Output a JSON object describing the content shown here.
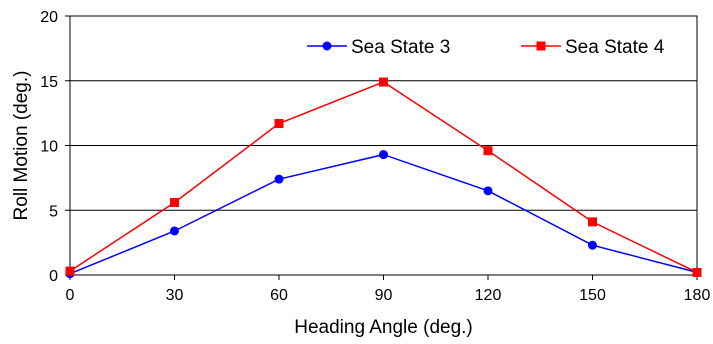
{
  "chart_data": {
    "type": "line",
    "xlabel": "Heading Angle (deg.)",
    "ylabel": "Roll Motion (deg.)",
    "xlim": [
      0,
      180
    ],
    "ylim": [
      0,
      20
    ],
    "x_ticks": [
      0,
      30,
      60,
      90,
      120,
      150,
      180
    ],
    "y_ticks": [
      0,
      5,
      10,
      15,
      20
    ],
    "grid": "horizontal",
    "legend_position": "top-right",
    "series": [
      {
        "name": "Sea State 3",
        "color": "#0000ff",
        "marker": "circle",
        "x": [
          0,
          30,
          60,
          90,
          120,
          150,
          180
        ],
        "y": [
          0.1,
          3.4,
          7.4,
          9.3,
          6.5,
          2.3,
          0.2
        ]
      },
      {
        "name": "Sea State 4",
        "color": "#ff0000",
        "marker": "square",
        "x": [
          0,
          30,
          60,
          90,
          120,
          150,
          180
        ],
        "y": [
          0.3,
          5.6,
          11.7,
          14.9,
          9.6,
          4.1,
          0.2
        ]
      }
    ]
  }
}
